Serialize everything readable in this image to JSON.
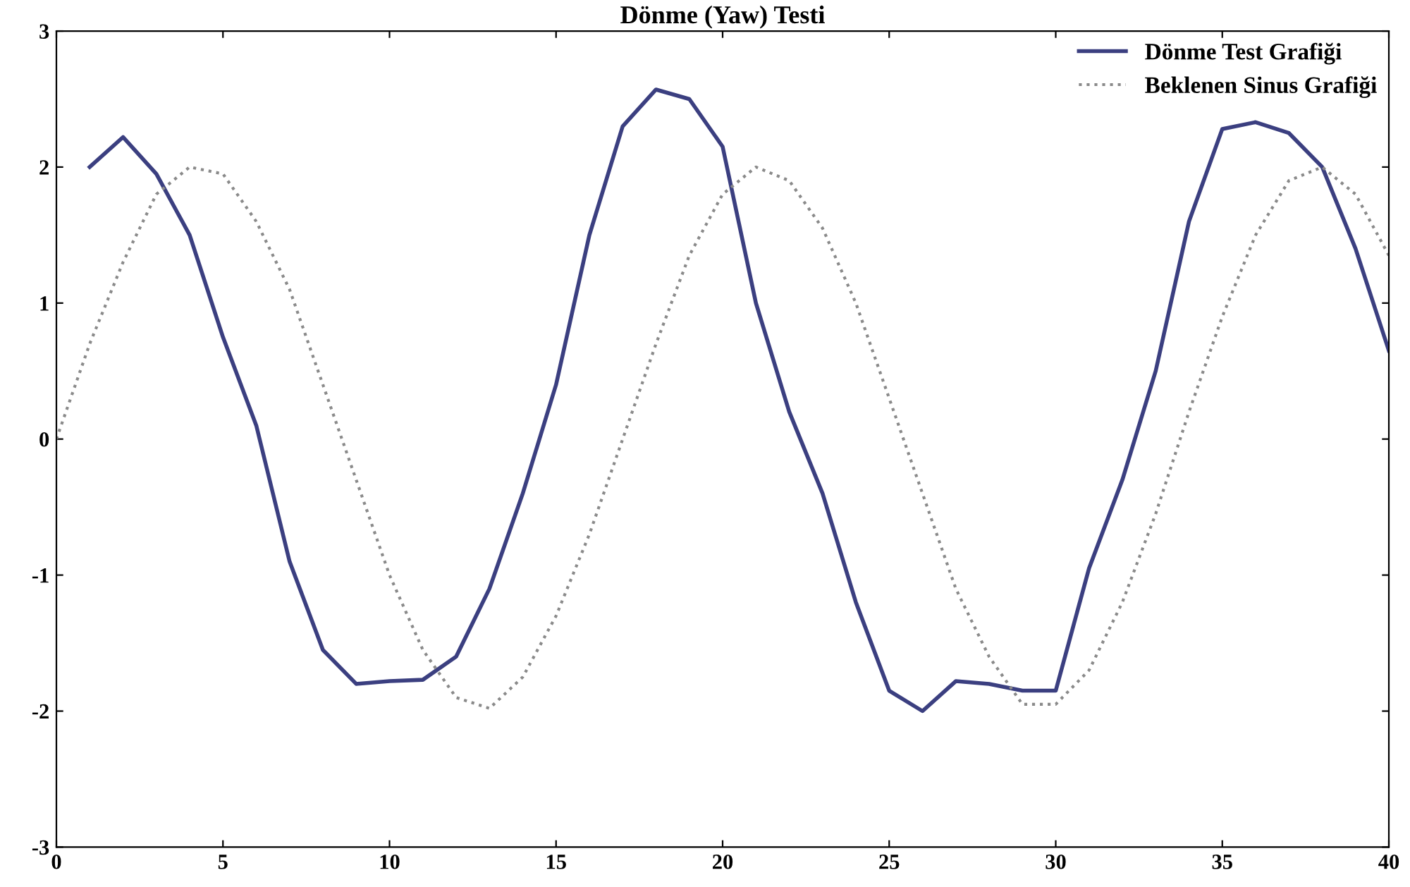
{
  "chart_data": {
    "type": "line",
    "title": "Dönme (Yaw) Testi",
    "x": [
      0,
      1,
      2,
      3,
      4,
      5,
      6,
      7,
      8,
      9,
      10,
      11,
      12,
      13,
      14,
      15,
      16,
      17,
      18,
      19,
      20,
      21,
      22,
      23,
      24,
      25,
      26,
      27,
      28,
      29,
      30,
      31,
      32,
      33,
      34,
      35,
      36,
      37,
      38,
      39,
      40
    ],
    "series": [
      {
        "name": "Dönme Test Grafiği",
        "color": "#3b3f80",
        "line_style": "solid",
        "x": [
          1,
          2,
          3,
          4,
          5,
          6,
          7,
          8,
          9,
          10,
          11,
          12,
          13,
          14,
          15,
          16,
          17,
          18,
          19,
          20,
          21,
          22,
          23,
          24,
          25,
          26,
          27,
          28,
          29,
          30,
          31,
          32,
          33,
          34,
          35,
          36,
          37,
          38,
          39,
          40
        ],
        "values": [
          2.0,
          2.22,
          1.95,
          1.5,
          0.75,
          0.1,
          -0.9,
          -1.55,
          -1.8,
          -1.78,
          -1.77,
          -1.6,
          -1.1,
          -0.4,
          0.4,
          1.5,
          2.3,
          2.57,
          2.5,
          2.15,
          1.0,
          0.2,
          -0.4,
          -1.2,
          -1.85,
          -2.0,
          -1.78,
          -1.8,
          -1.85,
          -1.85,
          -0.95,
          -0.3,
          0.5,
          1.6,
          2.28,
          2.33,
          2.25,
          2.0,
          1.4,
          0.65
        ]
      },
      {
        "name": "Beklenen Sinus Grafiği",
        "color": "#8a8a8a",
        "line_style": "dotted",
        "values": [
          0,
          0.7,
          1.3,
          1.8,
          2.0,
          1.95,
          1.6,
          1.1,
          0.4,
          -0.3,
          -1.0,
          -1.55,
          -1.9,
          -1.98,
          -1.75,
          -1.3,
          -0.7,
          0.0,
          0.7,
          1.35,
          1.8,
          2.0,
          1.9,
          1.55,
          1.0,
          0.3,
          -0.4,
          -1.1,
          -1.6,
          -1.95,
          -1.95,
          -1.7,
          -1.2,
          -0.55,
          0.2,
          0.9,
          1.5,
          1.9,
          2.0,
          1.8,
          1.35
        ]
      }
    ],
    "xlim": [
      0,
      40
    ],
    "xticks": [
      0,
      5,
      10,
      15,
      20,
      25,
      30,
      35,
      40
    ],
    "ylim": [
      -3,
      3
    ],
    "yticks": [
      -3,
      -2,
      -1,
      0,
      1,
      2,
      3
    ],
    "grid": false,
    "legend": "top right"
  }
}
